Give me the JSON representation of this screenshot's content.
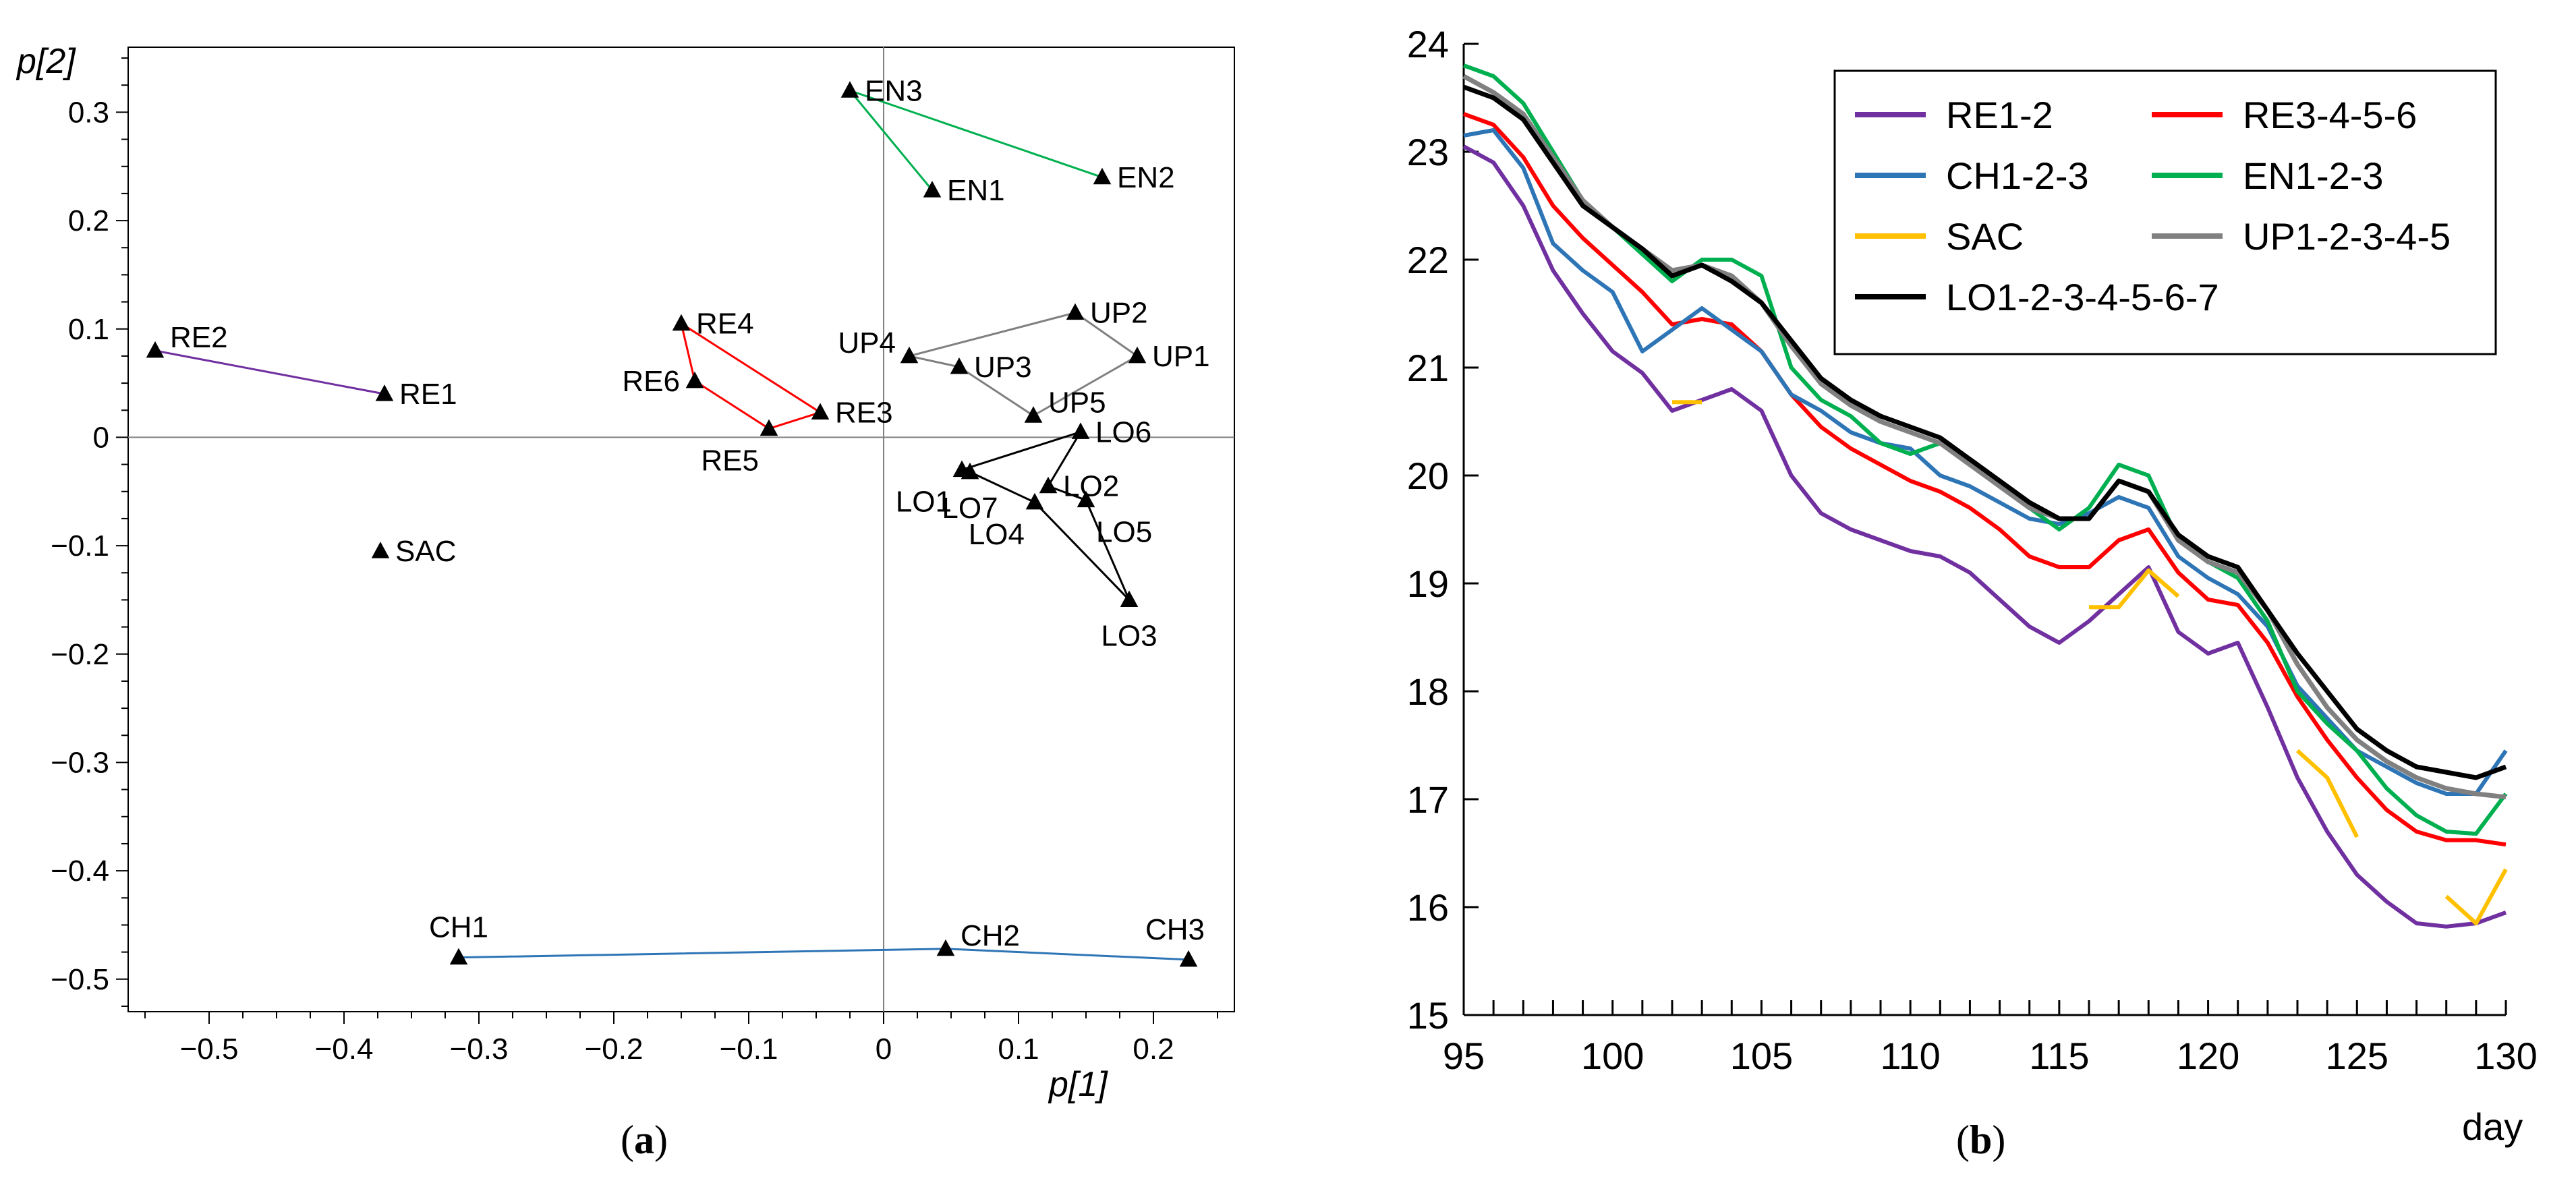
{
  "chart_data": [
    {
      "type": "scatter",
      "caption_open": "(",
      "caption_letter": "a",
      "caption_close": ")",
      "xlabel": "p[1]",
      "ylabel": "p[2]",
      "xlim": [
        -0.56,
        0.26
      ],
      "ylim": [
        -0.53,
        0.36
      ],
      "xticks": [
        -0.5,
        -0.4,
        -0.3,
        -0.2,
        -0.1,
        0,
        0.1,
        0.2
      ],
      "xtick_labels": [
        "−0.5",
        "−0.4",
        "−0.3",
        "−0.2",
        "−0.1",
        "0",
        "0.1",
        "0.2"
      ],
      "yticks": [
        0.3,
        0.2,
        0.1,
        0,
        -0.1,
        -0.2,
        -0.3,
        -0.4,
        -0.5
      ],
      "ytick_labels": [
        "0.3",
        "0.2",
        "0.1",
        "0",
        "−0.1",
        "−0.2",
        "−0.3",
        "−0.4",
        "−0.5"
      ],
      "points": [
        {
          "label": "RE1",
          "x": -0.37,
          "y": 0.04,
          "anchor": "right"
        },
        {
          "label": "RE2",
          "x": -0.54,
          "y": 0.08,
          "anchor": "upper-right"
        },
        {
          "label": "SAC",
          "x": -0.373,
          "y": -0.105,
          "anchor": "right"
        },
        {
          "label": "RE3",
          "x": -0.047,
          "y": 0.023,
          "anchor": "right"
        },
        {
          "label": "RE4",
          "x": -0.15,
          "y": 0.105,
          "anchor": "right"
        },
        {
          "label": "RE5",
          "x": -0.085,
          "y": 0.008,
          "anchor": "below-left"
        },
        {
          "label": "RE6",
          "x": -0.14,
          "y": 0.052,
          "anchor": "left"
        },
        {
          "label": "EN1",
          "x": 0.036,
          "y": 0.228,
          "anchor": "right"
        },
        {
          "label": "EN2",
          "x": 0.162,
          "y": 0.24,
          "anchor": "right"
        },
        {
          "label": "EN3",
          "x": -0.025,
          "y": 0.32,
          "anchor": "right"
        },
        {
          "label": "UP1",
          "x": 0.188,
          "y": 0.075,
          "anchor": "right"
        },
        {
          "label": "UP2",
          "x": 0.142,
          "y": 0.115,
          "anchor": "right"
        },
        {
          "label": "UP3",
          "x": 0.056,
          "y": 0.065,
          "anchor": "right"
        },
        {
          "label": "UP4",
          "x": 0.019,
          "y": 0.075,
          "anchor": "upper-left"
        },
        {
          "label": "UP5",
          "x": 0.111,
          "y": 0.02,
          "anchor": "upper-right"
        },
        {
          "label": "LO1",
          "x": 0.058,
          "y": -0.03,
          "anchor": "below-left"
        },
        {
          "label": "LO2",
          "x": 0.122,
          "y": -0.045,
          "anchor": "right"
        },
        {
          "label": "LO3",
          "x": 0.182,
          "y": -0.15,
          "anchor": "below"
        },
        {
          "label": "LO4",
          "x": 0.112,
          "y": -0.06,
          "anchor": "below-left"
        },
        {
          "label": "LO5",
          "x": 0.15,
          "y": -0.058,
          "anchor": "below-right"
        },
        {
          "label": "LO6",
          "x": 0.146,
          "y": 0.005,
          "anchor": "right"
        },
        {
          "label": "LO7",
          "x": 0.064,
          "y": -0.032,
          "anchor": "below"
        },
        {
          "label": "CH1",
          "x": -0.315,
          "y": -0.48,
          "anchor": "above"
        },
        {
          "label": "CH2",
          "x": 0.046,
          "y": -0.472,
          "anchor": "upper-right"
        },
        {
          "label": "CH3",
          "x": 0.226,
          "y": -0.482,
          "anchor": "above-left"
        }
      ],
      "groups": [
        {
          "color": "#7030A0",
          "closed": false,
          "members": [
            "RE2",
            "RE1"
          ]
        },
        {
          "color": "#FF0000",
          "closed": true,
          "members": [
            "RE4",
            "RE6",
            "RE5",
            "RE3"
          ]
        },
        {
          "color": "#00B050",
          "closed": false,
          "members": [
            "EN1",
            "EN3",
            "EN2"
          ]
        },
        {
          "color": "#808080",
          "closed": true,
          "members": [
            "UP4",
            "UP3",
            "UP5",
            "UP1",
            "UP2"
          ]
        },
        {
          "color": "#000000",
          "closed": true,
          "members": [
            "LO6",
            "LO1",
            "LO7",
            "LO4",
            "LO3",
            "LO5",
            "LO2"
          ]
        },
        {
          "color": "#2E75B6",
          "closed": false,
          "members": [
            "CH1",
            "CH2",
            "CH3"
          ]
        }
      ]
    },
    {
      "type": "line",
      "caption_open": "(",
      "caption_letter": "b",
      "caption_close": ")",
      "xlabel": "day",
      "ylabel": "",
      "xlim": [
        95,
        130
      ],
      "ylim": [
        15,
        24
      ],
      "xticks": [
        95,
        100,
        105,
        110,
        115,
        120,
        125,
        130
      ],
      "xtick_labels": [
        "95",
        "100",
        "105",
        "110",
        "115",
        "120",
        "125",
        "130"
      ],
      "yticks": [
        15,
        16,
        17,
        18,
        19,
        20,
        21,
        22,
        23,
        24
      ],
      "ytick_labels": [
        "15",
        "16",
        "17",
        "18",
        "19",
        "20",
        "21",
        "22",
        "23",
        "24"
      ],
      "legend_position": "top-right",
      "series": [
        {
          "name": "RE1-2",
          "color": "#7030A0",
          "width": 6,
          "x": [
            95,
            96,
            97,
            98,
            99,
            100,
            101,
            102,
            103,
            104,
            105,
            106,
            107,
            108,
            109,
            110,
            111,
            112,
            113,
            114,
            115,
            116,
            117,
            118,
            119,
            120,
            121,
            122,
            123,
            124,
            125,
            126,
            127,
            128,
            129,
            130
          ],
          "y": [
            23.05,
            22.9,
            22.5,
            21.9,
            21.5,
            21.15,
            20.95,
            20.6,
            20.7,
            20.8,
            20.6,
            20.0,
            19.65,
            19.5,
            19.4,
            19.3,
            19.25,
            19.1,
            18.85,
            18.6,
            18.45,
            18.65,
            18.9,
            19.15,
            18.55,
            18.35,
            18.45,
            17.85,
            17.2,
            16.7,
            16.3,
            16.05,
            15.85,
            15.82,
            15.85,
            15.95
          ]
        },
        {
          "name": "RE3-4-5-6",
          "color": "#FF0000",
          "width": 6,
          "x": [
            95,
            96,
            97,
            98,
            99,
            100,
            101,
            102,
            103,
            104,
            105,
            106,
            107,
            108,
            109,
            110,
            111,
            112,
            113,
            114,
            115,
            116,
            117,
            118,
            119,
            120,
            121,
            122,
            123,
            124,
            125,
            126,
            127,
            128,
            129,
            130
          ],
          "y": [
            23.35,
            23.25,
            22.95,
            22.5,
            22.2,
            21.95,
            21.7,
            21.4,
            21.45,
            21.4,
            21.15,
            20.75,
            20.45,
            20.25,
            20.1,
            19.95,
            19.85,
            19.7,
            19.5,
            19.25,
            19.15,
            19.15,
            19.4,
            19.5,
            19.1,
            18.85,
            18.8,
            18.45,
            17.95,
            17.55,
            17.2,
            16.9,
            16.7,
            16.62,
            16.62,
            16.58
          ]
        },
        {
          "name": "CH1-2-3",
          "color": "#2E75B6",
          "width": 6,
          "x": [
            95,
            96,
            97,
            98,
            99,
            100,
            101,
            102,
            103,
            104,
            105,
            106,
            107,
            108,
            109,
            110,
            111,
            112,
            113,
            114,
            115,
            116,
            117,
            118,
            119,
            120,
            121,
            122,
            123,
            124,
            125,
            126,
            127,
            128,
            129,
            130
          ],
          "y": [
            23.15,
            23.2,
            22.85,
            22.15,
            21.9,
            21.7,
            21.15,
            21.35,
            21.55,
            21.35,
            21.15,
            20.75,
            20.6,
            20.4,
            20.3,
            20.25,
            20.0,
            19.9,
            19.75,
            19.6,
            19.55,
            19.65,
            19.8,
            19.7,
            19.25,
            19.05,
            18.9,
            18.6,
            18.05,
            17.75,
            17.45,
            17.3,
            17.15,
            17.05,
            17.05,
            17.45
          ]
        },
        {
          "name": "EN1-2-3",
          "color": "#00B050",
          "width": 6,
          "x": [
            95,
            96,
            97,
            98,
            99,
            100,
            101,
            102,
            103,
            104,
            105,
            106,
            107,
            108,
            109,
            110,
            111,
            112,
            113,
            114,
            115,
            116,
            117,
            118,
            119,
            120,
            121,
            122,
            123,
            124,
            125,
            126,
            127,
            128,
            129,
            130
          ],
          "y": [
            23.8,
            23.7,
            23.45,
            23.0,
            22.55,
            22.3,
            22.05,
            21.8,
            22.0,
            22.0,
            21.85,
            21.0,
            20.7,
            20.55,
            20.3,
            20.2,
            20.3,
            20.1,
            19.9,
            19.7,
            19.5,
            19.7,
            20.1,
            20.0,
            19.4,
            19.2,
            19.05,
            18.65,
            18.0,
            17.7,
            17.45,
            17.1,
            16.85,
            16.7,
            16.68,
            17.05
          ]
        },
        {
          "name": "SAC",
          "color": "#FFC000",
          "width": 6,
          "segmented": true,
          "segments": [
            {
              "x": [
                102,
                103
              ],
              "y": [
                20.68,
                20.68
              ]
            },
            {
              "x": [
                116,
                117,
                118,
                119
              ],
              "y": [
                18.78,
                18.78,
                19.12,
                18.88
              ]
            },
            {
              "x": [
                123,
                124,
                125
              ],
              "y": [
                17.45,
                17.2,
                16.65
              ]
            },
            {
              "x": [
                128,
                129,
                130
              ],
              "y": [
                16.1,
                15.85,
                16.35
              ]
            }
          ]
        },
        {
          "name": "UP1-2-3-4-5",
          "color": "#808080",
          "width": 7,
          "x": [
            95,
            96,
            97,
            98,
            99,
            100,
            101,
            102,
            103,
            104,
            105,
            106,
            107,
            108,
            109,
            110,
            111,
            112,
            113,
            114,
            115,
            116,
            117,
            118,
            119,
            120,
            121,
            122,
            123,
            124,
            125,
            126,
            127,
            128,
            129,
            130
          ],
          "y": [
            23.7,
            23.55,
            23.35,
            22.95,
            22.55,
            22.3,
            22.1,
            21.9,
            21.95,
            21.85,
            21.6,
            21.2,
            20.85,
            20.65,
            20.5,
            20.4,
            20.3,
            20.1,
            19.9,
            19.7,
            19.6,
            19.6,
            19.95,
            19.85,
            19.4,
            19.2,
            19.1,
            18.75,
            18.25,
            17.85,
            17.55,
            17.35,
            17.2,
            17.1,
            17.05,
            17.02
          ]
        },
        {
          "name": "LO1-2-3-4-5-6-7",
          "color": "#000000",
          "width": 7,
          "x": [
            95,
            96,
            97,
            98,
            99,
            100,
            101,
            102,
            103,
            104,
            105,
            106,
            107,
            108,
            109,
            110,
            111,
            112,
            113,
            114,
            115,
            116,
            117,
            118,
            119,
            120,
            121,
            122,
            123,
            124,
            125,
            126,
            127,
            128,
            129,
            130
          ],
          "y": [
            23.6,
            23.5,
            23.3,
            22.9,
            22.5,
            22.3,
            22.1,
            21.85,
            21.95,
            21.8,
            21.6,
            21.25,
            20.9,
            20.7,
            20.55,
            20.45,
            20.35,
            20.15,
            19.95,
            19.75,
            19.6,
            19.6,
            19.95,
            19.85,
            19.45,
            19.25,
            19.15,
            18.75,
            18.35,
            18.0,
            17.65,
            17.45,
            17.3,
            17.25,
            17.2,
            17.3
          ]
        }
      ]
    }
  ]
}
